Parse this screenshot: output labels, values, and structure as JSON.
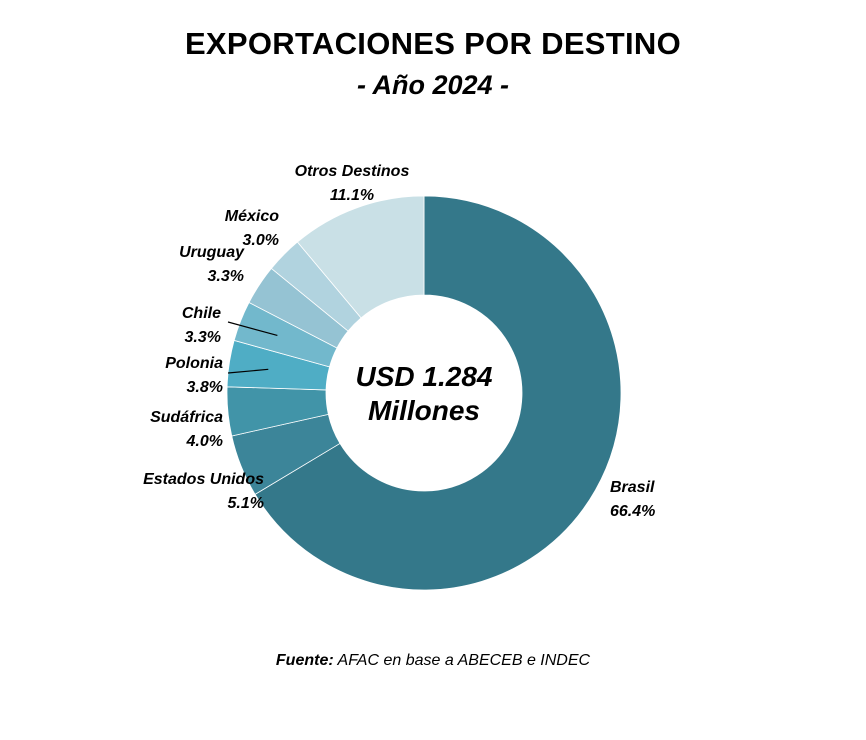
{
  "chart_data": {
    "type": "pie",
    "donut": true,
    "title": "EXPORTACIONES POR DESTINO",
    "subtitle": "- Año 2024 -",
    "center_text": [
      "USD 1.284",
      "Millones"
    ],
    "categories": [
      "Brasil",
      "Estados Unidos",
      "Sudáfrica",
      "Polonia",
      "Chile",
      "Uruguay",
      "México",
      "Otros Destinos"
    ],
    "values": [
      66.4,
      5.1,
      4.0,
      3.8,
      3.3,
      3.3,
      3.0,
      11.1
    ],
    "value_labels": [
      "66.4%",
      "5.1%",
      "4.0%",
      "3.8%",
      "3.3%",
      "3.3%",
      "3.0%",
      "11.1%"
    ],
    "colors": [
      "#34788a",
      "#3c8599",
      "#4194a8",
      "#4fadc5",
      "#72b8cc",
      "#95c3d3",
      "#b1d3df",
      "#c9e0e6"
    ]
  },
  "source": {
    "prefix": "Fuente:",
    "text": " AFAC en base a ABECEB e INDEC"
  }
}
